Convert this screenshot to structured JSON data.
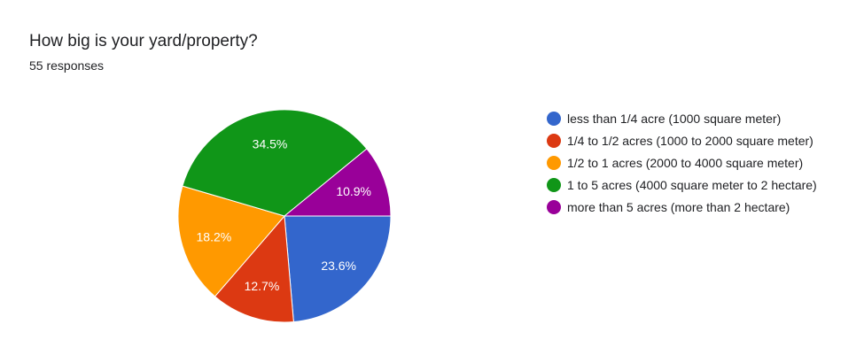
{
  "header": {
    "title": "How big is your yard/property?",
    "subtitle": "55 responses"
  },
  "chart_data": {
    "type": "pie",
    "title": "How big is your yard/property?",
    "categories": [
      "less than 1/4 acre (1000 square meter)",
      "1/4 to 1/2 acres (1000 to 2000 square meter)",
      "1/2 to 1 acres (2000 to 4000 square meter)",
      "1 to 5 acres (4000 square meter to 2 hectare)",
      "more than 5 acres (more than 2 hectare)"
    ],
    "values": [
      23.6,
      12.7,
      18.2,
      34.5,
      10.9
    ],
    "labels": [
      "23.6%",
      "12.7%",
      "18.2%",
      "34.5%",
      "10.9%"
    ],
    "colors": [
      "#3366cc",
      "#dc3912",
      "#ff9900",
      "#109618",
      "#990099"
    ],
    "legend_position": "right"
  }
}
